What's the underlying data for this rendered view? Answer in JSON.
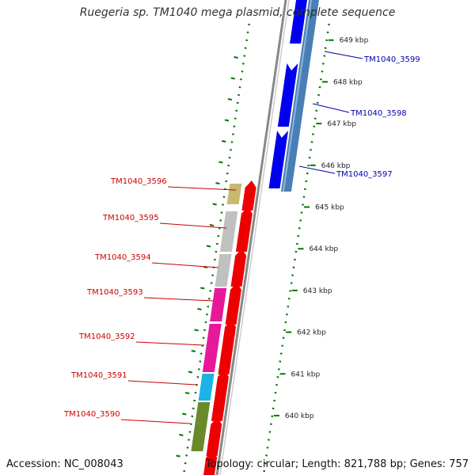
{
  "title": "Ruegeria sp. TM1040 mega plasmid, complete sequence",
  "accession": "Accession: NC_008043",
  "summary": "Topology: circular; Length: 821,788 bp; Genes: 757",
  "colors": {
    "backbone": "#888888",
    "forward_strand": "#0000ee",
    "forward_cds": "#4a7fb5",
    "reverse_strand": "#ee0000",
    "tick": "#007700",
    "label_reverse": "#cc0000",
    "label_forward": "#0000aa"
  },
  "ticks": [
    "640 kbp",
    "641 kbp",
    "642 kbp",
    "643 kbp",
    "644 kbp",
    "645 kbp",
    "646 kbp",
    "647 kbp",
    "648 kbp",
    "649 kbp"
  ],
  "forward_genes": [
    "TM1040_3597",
    "TM1040_3598",
    "TM1040_3599"
  ],
  "reverse_genes": [
    "TM1040_3590",
    "TM1040_3591",
    "TM1040_3592",
    "TM1040_3593",
    "TM1040_3594",
    "TM1040_3595",
    "TM1040_3596"
  ],
  "cog_colors": {
    "TM1040_3596": "#c8b870",
    "TM1040_3595": "#c0c0c0",
    "TM1040_3594": "#c0c0c0",
    "TM1040_3593": "#e8189a",
    "TM1040_3592": "#e8189a",
    "TM1040_3591": "#1ab4e8",
    "TM1040_3590": "#6a8a2a"
  }
}
